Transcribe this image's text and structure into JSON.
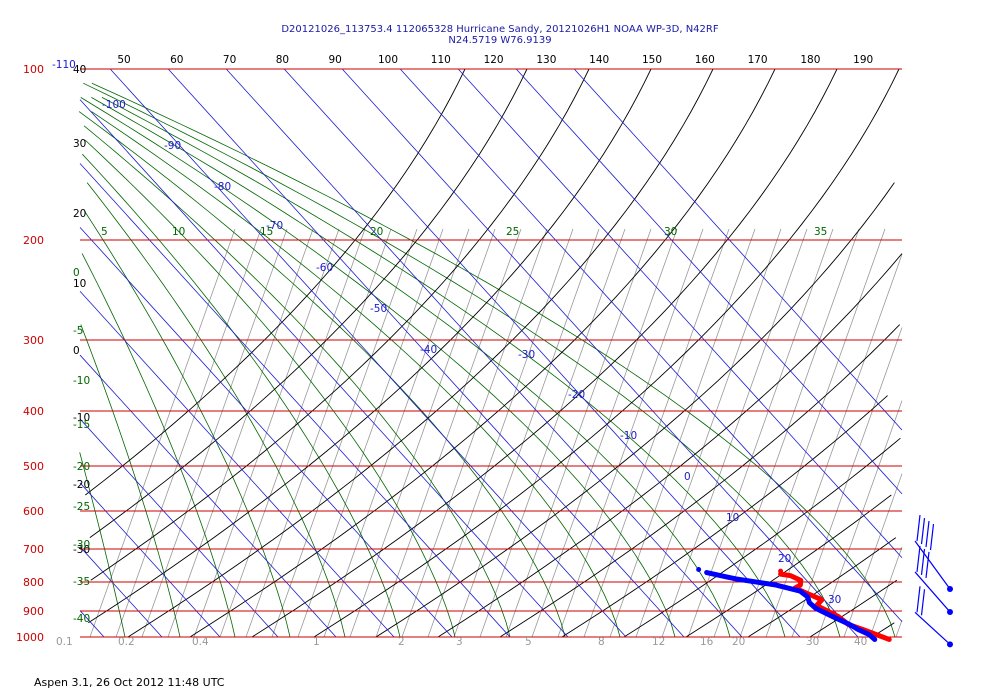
{
  "header": {
    "title_line1": "D20121026_113753.4 112065328 Hurricane Sandy, 20121026H1 NOAA WP-3D, N42RF",
    "title_line2": "N24.5719 W76.9139"
  },
  "footer": {
    "text": "Aspen 3.1, 26 Oct 2012  11:48 UTC"
  },
  "colors": {
    "isobar": "#cc0000",
    "isotherm": "#1a1ad0",
    "dry_adiabat": "#000000",
    "moist_adiabat": "#006600",
    "mixing_ratio": "#999999",
    "temperature": "#ff0000",
    "dewpoint": "#0000ff"
  },
  "chart_data": {
    "type": "line",
    "chart_kind": "skew-T log-P sounding",
    "pressure_labels": [
      "100",
      "200",
      "300",
      "400",
      "500",
      "600",
      "700",
      "800",
      "900",
      "1000"
    ],
    "top_labels": [
      "50",
      "60",
      "70",
      "80",
      "90",
      "100",
      "110",
      "120",
      "130",
      "140",
      "150",
      "160",
      "170",
      "180",
      "190"
    ],
    "left_labels": [
      "40",
      "30",
      "20",
      "10",
      "0",
      "-10",
      "-20",
      "-30"
    ],
    "isotherm_labels": [
      "-110",
      "-100",
      "-90",
      "-80",
      "-70",
      "-60",
      "-50",
      "-40",
      "-30",
      "-20",
      "-10",
      "0",
      "10",
      "20",
      "30"
    ],
    "moist_labels_top": [
      "5",
      "10",
      "15",
      "20",
      "25",
      "30",
      "35"
    ],
    "moist_labels_left": [
      "0",
      "-5",
      "-10",
      "-15",
      "-20",
      "-25",
      "-30",
      "-35",
      "-40"
    ],
    "bottom_labels": [
      "0.1",
      "0.2",
      "0.4",
      "1",
      "2",
      "3",
      "5",
      "8",
      "12",
      "16",
      "20",
      "30",
      "40"
    ],
    "series": [
      {
        "role": "temperature",
        "points": [
          {
            "p": 1010,
            "t": 25.0
          },
          {
            "p": 990,
            "t": 23.5
          },
          {
            "p": 970,
            "t": 22.0
          },
          {
            "p": 950,
            "t": 20.3
          },
          {
            "p": 920,
            "t": 19.8
          },
          {
            "p": 900,
            "t": 18.8
          },
          {
            "p": 880,
            "t": 17.8
          },
          {
            "p": 860,
            "t": 19.6
          },
          {
            "p": 840,
            "t": 18.2
          },
          {
            "p": 820,
            "t": 16.8
          },
          {
            "p": 810,
            "t": 18.2
          },
          {
            "p": 795,
            "t": 19.0
          },
          {
            "p": 780,
            "t": 18.0
          },
          {
            "p": 775,
            "t": 16.5
          }
        ]
      },
      {
        "role": "dewpoint",
        "points": [
          {
            "p": 1010,
            "t": 22.5
          },
          {
            "p": 990,
            "t": 22.3
          },
          {
            "p": 970,
            "t": 21.2
          },
          {
            "p": 950,
            "t": 20.5
          },
          {
            "p": 920,
            "t": 18.8
          },
          {
            "p": 890,
            "t": 17.2
          },
          {
            "p": 870,
            "t": 17.0
          },
          {
            "p": 850,
            "t": 17.6
          },
          {
            "p": 830,
            "t": 17.2
          },
          {
            "p": 810,
            "t": 14.0
          },
          {
            "p": 800,
            "t": 11.0
          },
          {
            "p": 790,
            "t": 8.0
          },
          {
            "p": 785,
            "t": 7.0
          },
          {
            "p": 770,
            "t": 4.0
          }
        ]
      }
    ],
    "wind_barbs": [
      {
        "p": 700,
        "barbs": 4
      },
      {
        "p": 800,
        "barbs": 3
      },
      {
        "p": 950,
        "barbs": 2
      }
    ]
  }
}
